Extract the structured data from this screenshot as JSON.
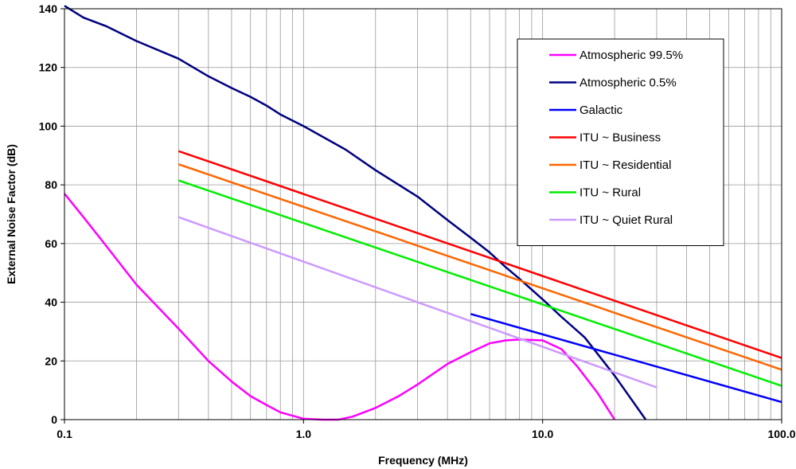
{
  "chart_data": {
    "type": "line",
    "title": "",
    "xlabel": "Frequency (MHz)",
    "ylabel": "External Noise Factor (dB)",
    "x_scale": "log",
    "xlim": [
      0.1,
      100
    ],
    "ylim": [
      0,
      140
    ],
    "x_tick_values": [
      0.1,
      1,
      10,
      100
    ],
    "x_tick_labels": [
      "0.1",
      "1.0",
      "10.0",
      "100.0"
    ],
    "y_tick_values": [
      0,
      20,
      40,
      60,
      80,
      100,
      120,
      140
    ],
    "y_tick_labels": [
      "0",
      "20",
      "40",
      "60",
      "80",
      "100",
      "120",
      "140"
    ],
    "grid": true,
    "legend_position": "top-right",
    "series": [
      {
        "name": "Atmospheric 99.5%",
        "color": "#ff00ff",
        "points": [
          [
            0.1,
            77
          ],
          [
            0.12,
            69
          ],
          [
            0.15,
            59
          ],
          [
            0.2,
            46
          ],
          [
            0.3,
            31
          ],
          [
            0.4,
            20
          ],
          [
            0.5,
            13
          ],
          [
            0.6,
            8
          ],
          [
            0.7,
            5
          ],
          [
            0.8,
            2.5
          ],
          [
            1.0,
            0.3
          ],
          [
            1.2,
            0
          ],
          [
            1.4,
            0
          ],
          [
            1.6,
            1
          ],
          [
            2.0,
            4
          ],
          [
            2.5,
            8
          ],
          [
            3.0,
            12
          ],
          [
            4.0,
            19
          ],
          [
            5.0,
            23
          ],
          [
            6.0,
            26
          ],
          [
            7.0,
            27
          ],
          [
            8.0,
            27.3
          ],
          [
            10.0,
            27
          ],
          [
            12.0,
            24
          ],
          [
            14.0,
            18
          ],
          [
            17.0,
            9
          ],
          [
            20.0,
            0
          ]
        ]
      },
      {
        "name": "Atmospheric 0.5%",
        "color": "#000080",
        "points": [
          [
            0.1,
            141
          ],
          [
            0.12,
            137
          ],
          [
            0.15,
            134
          ],
          [
            0.2,
            129
          ],
          [
            0.3,
            123
          ],
          [
            0.4,
            117
          ],
          [
            0.5,
            113
          ],
          [
            0.6,
            110
          ],
          [
            0.7,
            107
          ],
          [
            0.8,
            104
          ],
          [
            1.0,
            100
          ],
          [
            1.5,
            92
          ],
          [
            2.0,
            85
          ],
          [
            3.0,
            76
          ],
          [
            4.0,
            68
          ],
          [
            5.0,
            62
          ],
          [
            6.0,
            57
          ],
          [
            7.0,
            52
          ],
          [
            8.0,
            48
          ],
          [
            10.0,
            41
          ],
          [
            12.0,
            35
          ],
          [
            15.0,
            28
          ],
          [
            20.0,
            15
          ],
          [
            27.0,
            0
          ]
        ]
      },
      {
        "name": "Galactic",
        "color": "#0000ff",
        "points": [
          [
            5.0,
            36
          ],
          [
            100.0,
            6
          ]
        ]
      },
      {
        "name": "ITU ~ Business",
        "color": "#ff0000",
        "points": [
          [
            0.3,
            91.5
          ],
          [
            100.0,
            21
          ]
        ]
      },
      {
        "name": "ITU ~ Residential",
        "color": "#ff6600",
        "points": [
          [
            0.3,
            87
          ],
          [
            100.0,
            17
          ]
        ]
      },
      {
        "name": "ITU ~ Rural",
        "color": "#00ee00",
        "points": [
          [
            0.3,
            81.5
          ],
          [
            100.0,
            11.5
          ]
        ]
      },
      {
        "name": "ITU ~ Quiet Rural",
        "color": "#cc99ff",
        "points": [
          [
            0.3,
            69
          ],
          [
            30.0,
            11
          ]
        ]
      }
    ]
  }
}
